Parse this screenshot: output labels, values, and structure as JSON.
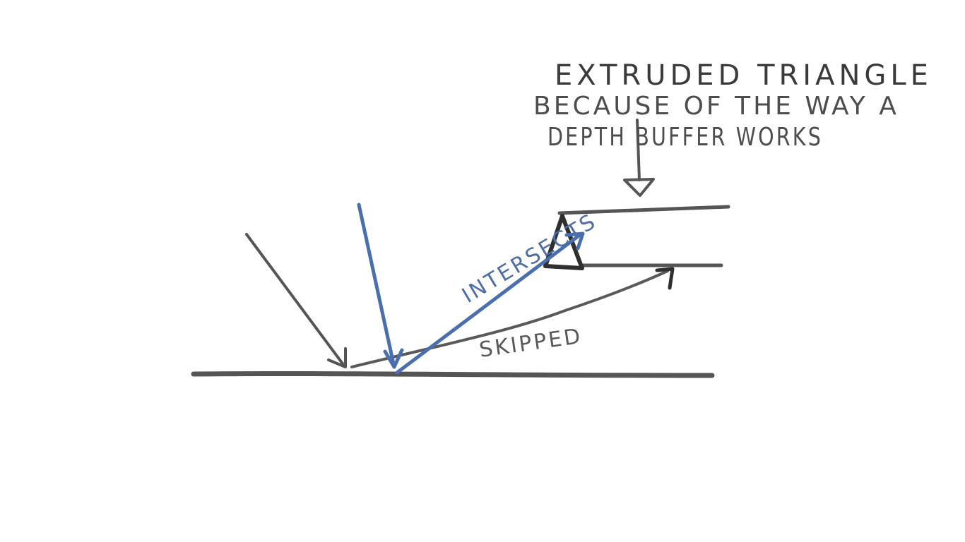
{
  "annotation": {
    "line1": "EXTRUDED TRIANGLE",
    "line2": "BECAUSE OF THE WAY A",
    "line3": "DEPTH BUFFER WORKS"
  },
  "labels": {
    "intersects": "INTERSECTS",
    "skipped": "SKIPPED"
  },
  "colors": {
    "ink": "#555555",
    "dark_ink": "#2f2f2f",
    "blue_ray": "#4a6fae",
    "background": "#ffffff"
  }
}
